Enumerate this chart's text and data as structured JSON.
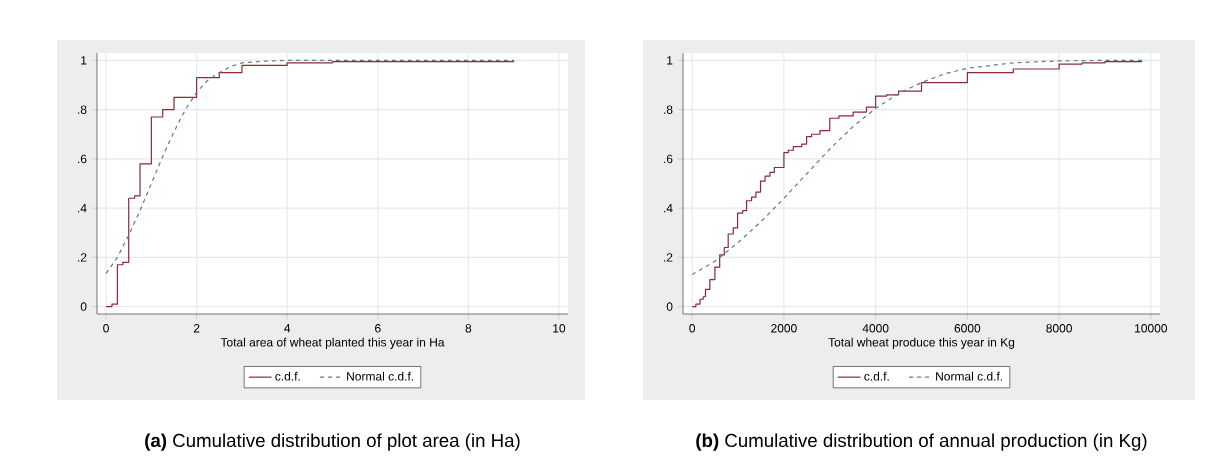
{
  "chart_data": [
    {
      "type": "step",
      "title": "**(a)** Cumulative distribution of plot area (in Ha)",
      "xlabel": "Total area of wheat planted this year in Ha",
      "xlim": [
        -0.2,
        10.2
      ],
      "ylim": [
        -0.03,
        1.03
      ],
      "xticks": [
        0,
        2,
        4,
        6,
        8,
        10
      ],
      "yticks": [
        {
          "value": 0,
          "label": "0"
        },
        {
          "value": 0.2,
          "label": ".2"
        },
        {
          "value": 0.4,
          "label": ".4"
        },
        {
          "value": 0.6,
          "label": ".6"
        },
        {
          "value": 0.8,
          "label": ".8"
        },
        {
          "value": 1,
          "label": "1"
        }
      ],
      "grid": true,
      "legend": "bottom",
      "series": [
        {
          "name": "c.d.f.",
          "color": "#8b2b36",
          "line_style": "solid",
          "x": [
            0,
            0.13,
            0.25,
            0.37,
            0.5,
            0.63,
            0.75,
            1,
            1.25,
            1.5,
            1.75,
            2,
            2.5,
            3,
            4,
            5,
            9
          ],
          "values": [
            0,
            0.01,
            0.17,
            0.18,
            0.44,
            0.45,
            0.58,
            0.77,
            0.8,
            0.85,
            0.85,
            0.93,
            0.95,
            0.98,
            0.99,
            0.995,
            1
          ]
        },
        {
          "name": "Normal c.d.f.",
          "type": "line",
          "color": "#5a7b94",
          "line_style": "dashed",
          "x": [
            0,
            0.25,
            0.5,
            0.75,
            1,
            1.25,
            1.5,
            1.75,
            2,
            2.25,
            2.5,
            2.75,
            3,
            3.5,
            4,
            9
          ],
          "values": [
            0.135,
            0.2,
            0.29,
            0.39,
            0.5,
            0.61,
            0.71,
            0.8,
            0.87,
            0.92,
            0.95,
            0.975,
            0.99,
            0.997,
            1,
            1
          ]
        }
      ]
    },
    {
      "type": "step",
      "title": "**(b)** Cumulative distribution of annual production (in Kg)",
      "xlabel": "Total wheat produce this year in Kg",
      "xlim": [
        -200,
        10200
      ],
      "ylim": [
        -0.03,
        1.03
      ],
      "xticks": [
        0,
        2000,
        4000,
        6000,
        8000,
        10000
      ],
      "yticks": [
        {
          "value": 0,
          "label": "0"
        },
        {
          "value": 0.2,
          "label": ".2"
        },
        {
          "value": 0.4,
          "label": ".4"
        },
        {
          "value": 0.6,
          "label": ".6"
        },
        {
          "value": 0.8,
          "label": ".8"
        },
        {
          "value": 1,
          "label": "1"
        }
      ],
      "grid": true,
      "legend": "bottom",
      "series": [
        {
          "name": "c.d.f.",
          "color": "#8b2b36",
          "line_style": "solid",
          "x": [
            0,
            80,
            170,
            240,
            290,
            385,
            495,
            600,
            700,
            785,
            895,
            990,
            1100,
            1185,
            1295,
            1390,
            1490,
            1590,
            1695,
            1790,
            2000,
            2095,
            2205,
            2390,
            2495,
            2605,
            2785,
            3000,
            3200,
            3510,
            3800,
            4000,
            4240,
            4500,
            5000,
            6000,
            7000,
            8000,
            8500,
            9000,
            9800
          ],
          "values": [
            0,
            0.01,
            0.03,
            0.04,
            0.07,
            0.11,
            0.16,
            0.21,
            0.24,
            0.295,
            0.32,
            0.38,
            0.39,
            0.43,
            0.445,
            0.465,
            0.51,
            0.53,
            0.545,
            0.565,
            0.625,
            0.635,
            0.65,
            0.66,
            0.69,
            0.7,
            0.715,
            0.765,
            0.775,
            0.79,
            0.81,
            0.855,
            0.86,
            0.875,
            0.91,
            0.95,
            0.965,
            0.985,
            0.99,
            0.995,
            1
          ]
        },
        {
          "name": "Normal c.d.f.",
          "type": "line",
          "color": "#5a7b94",
          "line_style": "dashed",
          "x": [
            0,
            500,
            1000,
            1500,
            2000,
            2500,
            3000,
            3500,
            4000,
            4500,
            5000,
            5500,
            6000,
            7000,
            8000,
            9000,
            9800
          ],
          "values": [
            0.13,
            0.185,
            0.26,
            0.345,
            0.44,
            0.54,
            0.64,
            0.73,
            0.805,
            0.865,
            0.91,
            0.945,
            0.968,
            0.99,
            0.998,
            1,
            1
          ]
        }
      ]
    }
  ]
}
